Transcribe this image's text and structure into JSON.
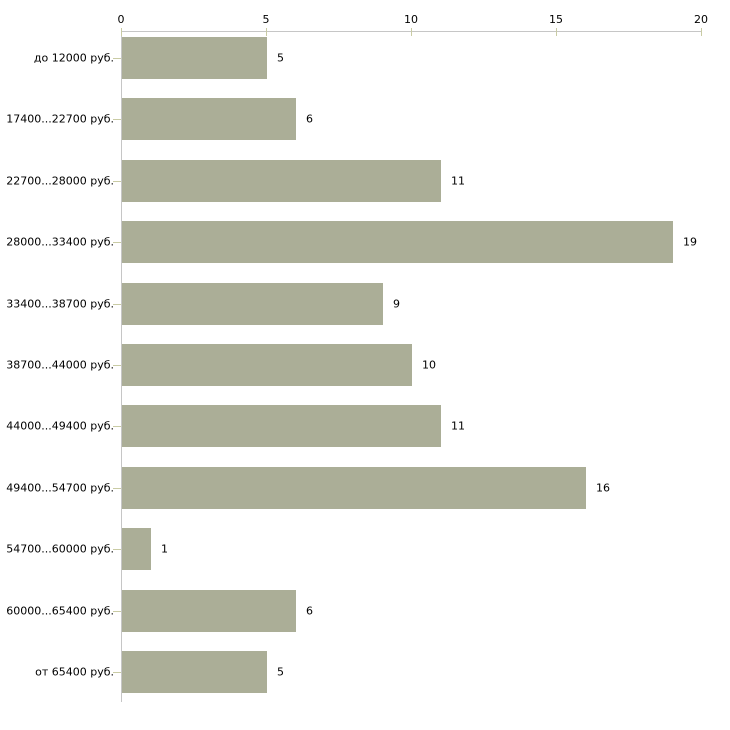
{
  "chart_data": {
    "type": "bar",
    "orientation": "horizontal",
    "title": "",
    "xlabel": "",
    "ylabel": "",
    "categories": [
      "до 12000 руб.",
      "17400...22700 руб.",
      "22700...28000 руб.",
      "28000...33400 руб.",
      "33400...38700 руб.",
      "38700...44000 руб.",
      "44000...49400 руб.",
      "49400...54700 руб.",
      "54700...60000 руб.",
      "60000...65400 руб.",
      "от 65400 руб."
    ],
    "values": [
      5,
      6,
      11,
      19,
      9,
      10,
      11,
      16,
      1,
      6,
      5
    ],
    "value_labels": [
      "5",
      "6",
      "11",
      "19",
      "9",
      "10",
      "11",
      "16",
      "1",
      "6",
      "5"
    ],
    "xlim": [
      0,
      20
    ],
    "xticks": [
      0,
      5,
      10,
      15,
      20
    ],
    "xtick_labels": [
      "0",
      "5",
      "10",
      "15",
      "20"
    ],
    "axis_position": "top",
    "grid": false,
    "legend": false,
    "colors": {
      "bar_fill": "#abae97",
      "axis_line": "#c6c6c6",
      "tick_mark": "#c9cba4",
      "text": "#000000",
      "background": "#ffffff"
    }
  }
}
